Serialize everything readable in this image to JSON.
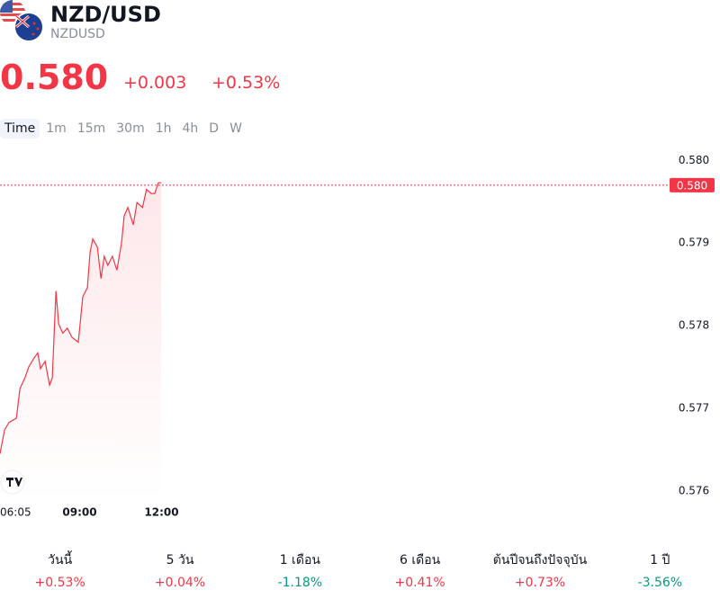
{
  "header": {
    "title": "NZD/USD",
    "symbol": "NZDUSD"
  },
  "quote": {
    "price": "0.580",
    "change": "+0.003",
    "change_percent": "+0.53%"
  },
  "timeframes": [
    "Time",
    "1m",
    "15m",
    "30m",
    "1h",
    "4h",
    "D",
    "W"
  ],
  "chart_data": {
    "type": "line",
    "color": "#f23645",
    "x": [
      "06:05",
      "06:15",
      "06:25",
      "06:41",
      "06:49",
      "07:00",
      "07:08",
      "07:20",
      "07:28",
      "07:34",
      "07:44",
      "07:54",
      "08:00",
      "08:08",
      "08:14",
      "08:23",
      "08:33",
      "08:43",
      "08:57",
      "09:07",
      "09:17",
      "09:23",
      "09:29",
      "09:39",
      "09:47",
      "09:54",
      "10:02",
      "10:12",
      "10:22",
      "10:32",
      "10:38",
      "10:46",
      "10:58",
      "11:06",
      "11:18",
      "11:27",
      "11:37",
      "11:45",
      "11:53",
      "11:59"
    ],
    "values": [
      0.57645,
      0.57674,
      0.57683,
      0.57688,
      0.57724,
      0.57737,
      0.5775,
      0.57761,
      0.57767,
      0.57748,
      0.57757,
      0.57728,
      0.57737,
      0.57842,
      0.57802,
      0.57791,
      0.57797,
      0.57786,
      0.5778,
      0.57835,
      0.57846,
      0.57889,
      0.57905,
      0.57895,
      0.57857,
      0.57884,
      0.57873,
      0.57884,
      0.57867,
      0.579,
      0.57933,
      0.57943,
      0.57922,
      0.57949,
      0.57943,
      0.57965,
      0.5796,
      0.5796,
      0.57973,
      0.57973
    ],
    "ylim": [
      0.5759,
      0.5802
    ],
    "yticks": [
      {
        "value": 0.58,
        "label": "0.580"
      },
      0.579,
      0.578,
      0.577,
      0.576
    ],
    "xticks": [
      "06:05",
      "09:00",
      "12:00"
    ],
    "last_price": {
      "value": 0.5797,
      "label": "0.580"
    }
  },
  "performance": [
    {
      "label": "วันนี้",
      "value": "+0.53%"
    },
    {
      "label": "5 วัน",
      "value": "+0.04%"
    },
    {
      "label": "1 เดือน",
      "value": "-1.18%"
    },
    {
      "label": "6 เดือน",
      "value": "+0.41%"
    },
    {
      "label": "ต้นปีจนถึงปัจจุบัน",
      "value": "+0.73%"
    },
    {
      "label": "1 ปี",
      "value": "-3.56%"
    }
  ]
}
